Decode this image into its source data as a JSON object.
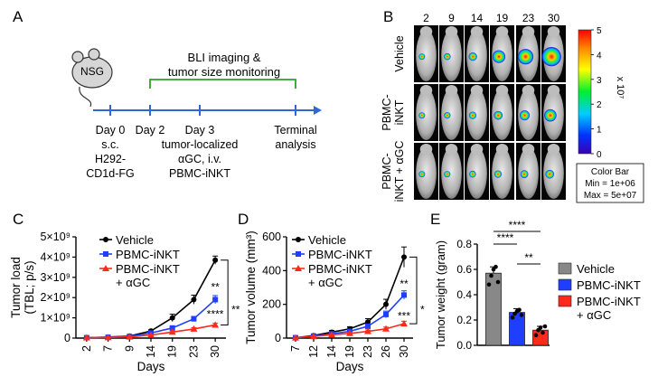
{
  "panels": {
    "A": "A",
    "B": "B",
    "C": "C",
    "D": "D",
    "E": "E"
  },
  "panel_a": {
    "mouse_label": "NSG",
    "bracket_title_line1": "BLI imaging &",
    "bracket_title_line2": "tumor size monitoring",
    "timeline": [
      {
        "day": "Day 0",
        "lines": [
          "s.c.",
          "H292-",
          "CD1d-FG"
        ]
      },
      {
        "day": "Day 2",
        "lines": []
      },
      {
        "day": "Day 3",
        "lines": [
          "tumor-localized",
          "αGC, i.v.",
          "PBMC-iNKT"
        ]
      },
      {
        "day": "Terminal",
        "lines": [
          "analysis"
        ]
      }
    ]
  },
  "panel_b": {
    "days": [
      "2",
      "9",
      "14",
      "19",
      "23",
      "30"
    ],
    "rows": [
      {
        "label_lines": [
          "Vehicle"
        ],
        "signal": [
          0.05,
          0.08,
          0.18,
          0.45,
          0.62,
          0.85
        ]
      },
      {
        "label_lines": [
          "PBMC-",
          "iNKT"
        ],
        "signal": [
          0.05,
          0.06,
          0.12,
          0.2,
          0.28,
          0.42
        ]
      },
      {
        "label_lines": [
          "PBMC-",
          "iNKT + αGC"
        ],
        "signal": [
          0.05,
          0.05,
          0.08,
          0.12,
          0.15,
          0.2
        ]
      }
    ],
    "colorbar": {
      "ticks": [
        "5",
        "4",
        "3",
        "2",
        "1",
        "0"
      ],
      "unit": "x 10⁷",
      "legend_title": "Color Bar",
      "legend_min": "Min = 1e+06",
      "legend_max": "Max = 5e+07"
    }
  },
  "chart_data": [
    {
      "id": "C",
      "type": "line",
      "ylabel_line1": "Tumor load",
      "ylabel_line2": "(TBL; p/s)",
      "xlabel": "Days",
      "x": [
        2,
        7,
        9,
        14,
        19,
        23,
        30
      ],
      "x_tick_labels": [
        "2",
        "7",
        "9",
        "14",
        "19",
        "23",
        "30"
      ],
      "ylim": [
        0,
        5000000000
      ],
      "y_tick_labels": [
        "0",
        "1×10⁹",
        "2×10⁹",
        "3×10⁹",
        "4×10⁹",
        "5×10⁹"
      ],
      "series": [
        {
          "name": "Vehicle",
          "color": "#000000",
          "marker": "circle",
          "values": [
            20000000,
            50000000,
            100000000,
            350000000,
            1000000000,
            1900000000,
            3850000000
          ],
          "err": [
            0,
            0,
            20000000,
            60000000,
            180000000,
            220000000,
            200000000
          ]
        },
        {
          "name": "PBMC-iNKT",
          "color": "#1f3fff",
          "marker": "square",
          "values": [
            20000000,
            40000000,
            80000000,
            250000000,
            500000000,
            950000000,
            1900000000
          ],
          "err": [
            0,
            0,
            10000000,
            40000000,
            80000000,
            120000000,
            200000000
          ]
        },
        {
          "name": "PBMC-iNKT\n+ αGC",
          "color": "#ff2a1a",
          "marker": "triangle",
          "values": [
            20000000,
            30000000,
            60000000,
            150000000,
            300000000,
            450000000,
            650000000
          ],
          "err": [
            0,
            0,
            10000000,
            30000000,
            50000000,
            60000000,
            80000000
          ]
        }
      ],
      "annotations": [
        {
          "text": "**",
          "color": "#1f3fff",
          "x": 30,
          "y": 2350000000
        },
        {
          "text": "****",
          "color": "#ff2a1a",
          "x": 30,
          "y": 1000000000
        },
        {
          "text": "**",
          "color": "#000000",
          "x": "bracket",
          "y": 1400000000
        }
      ]
    },
    {
      "id": "D",
      "type": "line",
      "ylabel": "Tumor volume (mm³)",
      "xlabel": "Days",
      "x": [
        7,
        12,
        14,
        19,
        23,
        26,
        30
      ],
      "x_tick_labels": [
        "7",
        "12",
        "14",
        "19",
        "23",
        "26",
        "30"
      ],
      "ylim": [
        0,
        600
      ],
      "y_tick_labels": [
        "0",
        "200",
        "400",
        "600"
      ],
      "series": [
        {
          "name": "Vehicle",
          "color": "#000000",
          "marker": "circle",
          "values": [
            2,
            15,
            35,
            55,
            95,
            200,
            480
          ],
          "err": [
            1,
            5,
            10,
            12,
            20,
            30,
            60
          ]
        },
        {
          "name": "PBMC-iNKT",
          "color": "#1f3fff",
          "marker": "square",
          "values": [
            2,
            12,
            25,
            40,
            70,
            140,
            255
          ],
          "err": [
            1,
            4,
            8,
            10,
            12,
            20,
            25
          ]
        },
        {
          "name": "PBMC-iNKT\n+ αGC",
          "color": "#ff2a1a",
          "marker": "triangle",
          "values": [
            2,
            10,
            20,
            28,
            40,
            55,
            85
          ],
          "err": [
            1,
            3,
            5,
            6,
            8,
            10,
            15
          ]
        }
      ],
      "annotations": [
        {
          "text": "**",
          "color": "#1f3fff",
          "x": 30,
          "y": 300
        },
        {
          "text": "***",
          "color": "#ff2a1a",
          "x": 30,
          "y": 110
        },
        {
          "text": "*",
          "color": "#000000",
          "x": "bracket",
          "y": 170
        }
      ]
    },
    {
      "id": "E",
      "type": "bar",
      "ylabel": "Tumor weight (gram)",
      "categories": [
        "Vehicle",
        "PBMC-iNKT",
        "PBMC-iNKT\n+ αGC"
      ],
      "values": [
        0.57,
        0.26,
        0.12
      ],
      "err": [
        0.05,
        0.03,
        0.03
      ],
      "points": [
        [
          0.48,
          0.55,
          0.6,
          0.62,
          0.5
        ],
        [
          0.22,
          0.25,
          0.27,
          0.28,
          0.24
        ],
        [
          0.08,
          0.12,
          0.14,
          0.1,
          0.15
        ]
      ],
      "colors": [
        "#888888",
        "#1f3fff",
        "#ff2a1a"
      ],
      "ylim": [
        0,
        0.8
      ],
      "y_tick_labels": [
        "0.0",
        "0.2",
        "0.4",
        "0.6",
        "0.8"
      ],
      "significance": [
        {
          "between": [
            0,
            2
          ],
          "text": "****"
        },
        {
          "between": [
            0,
            1
          ],
          "text": "****"
        },
        {
          "between": [
            1,
            2
          ],
          "text": "**"
        }
      ],
      "legend": [
        "Vehicle",
        "PBMC-iNKT",
        "PBMC-iNKT\n+ αGC"
      ]
    }
  ]
}
